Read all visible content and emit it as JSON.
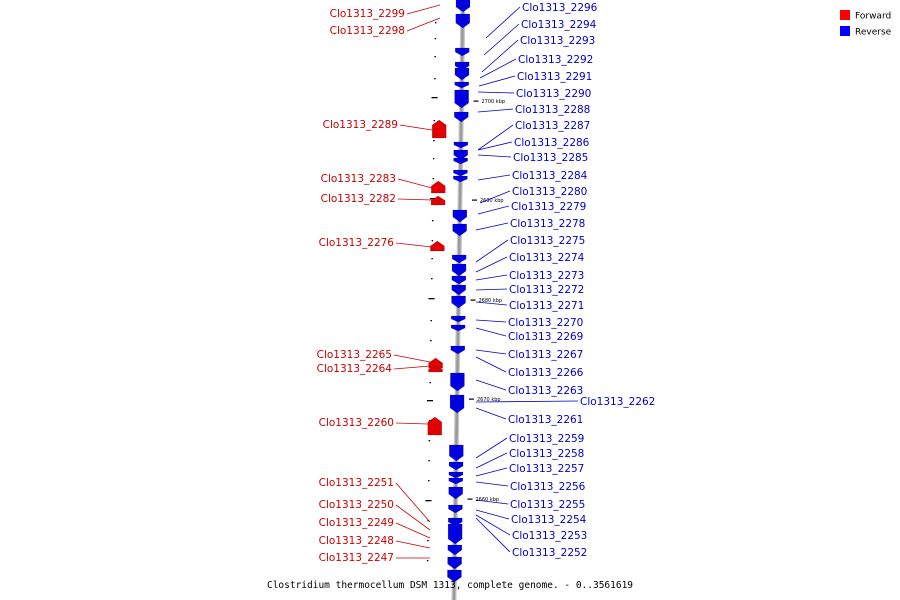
{
  "caption": "Clostridium thermocellum DSM 1313, complete genome. - 0..3561619",
  "legend": [
    {
      "label": "Forward",
      "color": "#ff0000"
    },
    {
      "label": "Reverse",
      "color": "#0000ff"
    }
  ],
  "colors": {
    "forward": "#e00000",
    "reverse": "#0000e0",
    "forward_text": "#cc0000",
    "reverse_text": "#0000cc",
    "backbone": "#9a9a9a"
  },
  "ticks": [
    "2700 kbp",
    "2690 kbp",
    "2680 kbp",
    "2670 kbp",
    "2660 kbp"
  ],
  "forward_genes": [
    "Clo1313_2299",
    "Clo1313_2298",
    "Clo1313_2289",
    "Clo1313_2283",
    "Clo1313_2282",
    "Clo1313_2276",
    "Clo1313_2265",
    "Clo1313_2264",
    "Clo1313_2260",
    "Clo1313_2251",
    "Clo1313_2250",
    "Clo1313_2249",
    "Clo1313_2248",
    "Clo1313_2247"
  ],
  "reverse_genes": [
    "Clo1313_2296",
    "Clo1313_2294",
    "Clo1313_2293",
    "Clo1313_2292",
    "Clo1313_2291",
    "Clo1313_2290",
    "Clo1313_2288",
    "Clo1313_2287",
    "Clo1313_2286",
    "Clo1313_2285",
    "Clo1313_2284",
    "Clo1313_2280",
    "Clo1313_2279",
    "Clo1313_2278",
    "Clo1313_2275",
    "Clo1313_2274",
    "Clo1313_2273",
    "Clo1313_2272",
    "Clo1313_2271",
    "Clo1313_2270",
    "Clo1313_2269",
    "Clo1313_2267",
    "Clo1313_2266",
    "Clo1313_2263",
    "Clo1313_2262",
    "Clo1313_2261",
    "Clo1313_2259",
    "Clo1313_2258",
    "Clo1313_2257",
    "Clo1313_2256",
    "Clo1313_2255",
    "Clo1313_2254",
    "Clo1313_2253",
    "Clo1313_2252"
  ]
}
